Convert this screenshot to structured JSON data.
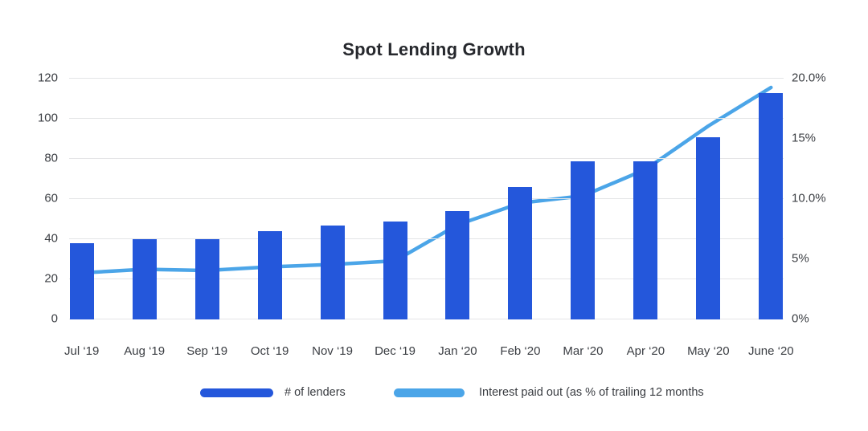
{
  "title": "Spot Lending Growth",
  "chart_data": {
    "type": "bar",
    "subtype": "combo-bar-line-dual-axis",
    "title": "Spot Lending Growth",
    "categories": [
      "Jul ‘19",
      "Aug ‘19",
      "Sep ‘19",
      "Oct ‘19",
      "Nov ‘19",
      "Dec ‘19",
      "Jan ‘20",
      "Feb ‘20",
      "Mar ‘20",
      "Apr ‘20",
      "May ‘20",
      "June ‘20"
    ],
    "series": [
      {
        "name": "# of lenders",
        "type": "bar",
        "axis": "left",
        "color": "#2457db",
        "values": [
          38,
          40,
          40,
          44,
          47,
          49,
          54,
          66,
          79,
          79,
          91,
          113
        ]
      },
      {
        "name": "Interest paid out (as % of trailing 12 months",
        "type": "line",
        "axis": "right",
        "color": "#4ba5e8",
        "values": [
          3.8,
          4.1,
          4.0,
          4.3,
          4.5,
          4.8,
          7.8,
          9.6,
          10.2,
          12.4,
          16.0,
          19.2
        ]
      }
    ],
    "left_axis": {
      "min": 0,
      "max": 120,
      "ticks": [
        "120",
        "100",
        "80",
        "60",
        "40",
        "20",
        "0"
      ]
    },
    "right_axis": {
      "min": 0,
      "max": 20,
      "ticks": [
        "20.0%",
        "15%",
        "10.0%",
        "5%",
        "0%"
      ]
    },
    "grid": "horizontal-on",
    "legend_position": "bottom",
    "background": "#ffffff",
    "gridline_color": "#e4e5e7",
    "axis_text_color": "#3b3e43"
  },
  "legend": {
    "items": [
      {
        "label": "# of lenders",
        "color": "#2457db"
      },
      {
        "label": "Interest paid out (as % of trailing 12 months",
        "color": "#4ba5e8"
      }
    ]
  }
}
